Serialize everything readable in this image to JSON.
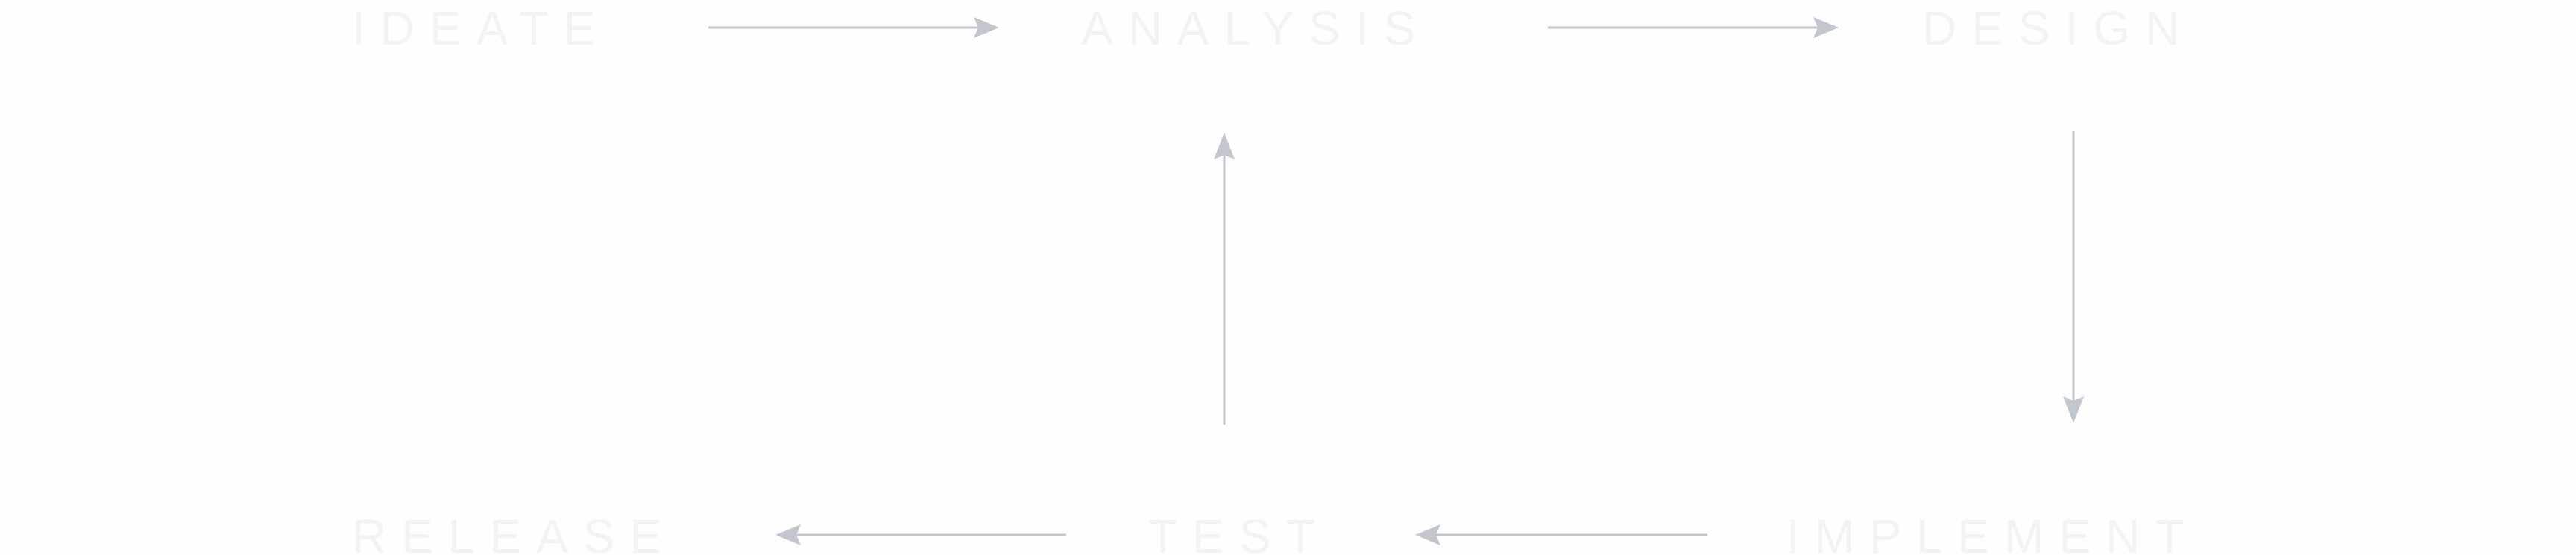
{
  "diagram": {
    "stages": {
      "ideate": "IDEATE",
      "analysis": "ANALYSIS",
      "design": "DESIGN",
      "implement": "IMPLEMENT",
      "test": "TEST",
      "release": "RELEASE"
    }
  },
  "colors": {
    "arrow": "#c2c6ce",
    "label": "#f2f3f5",
    "background": "#fefefe"
  }
}
